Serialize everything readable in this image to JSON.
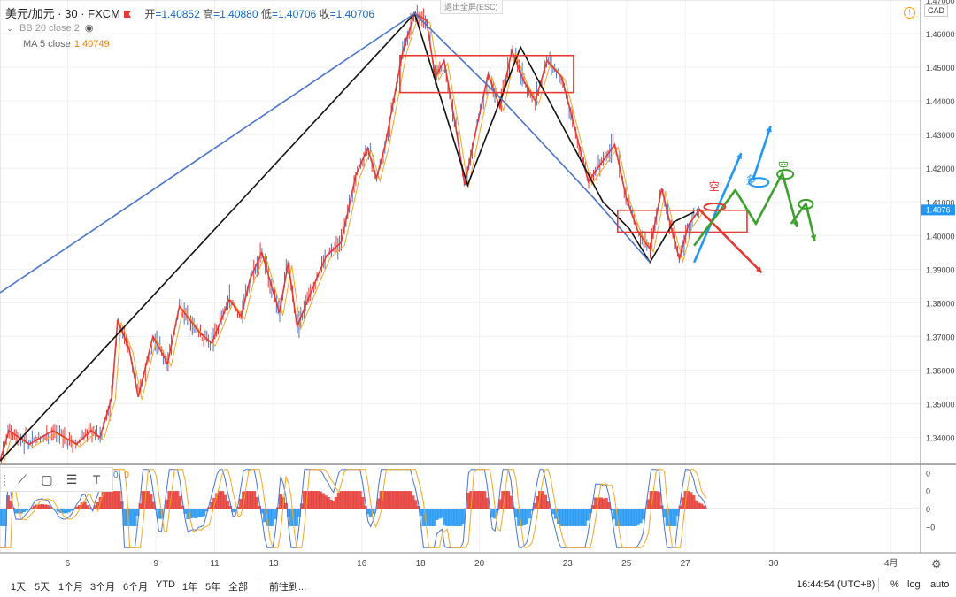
{
  "header": {
    "symbol": "美元/加元 · 30 · FXCM",
    "open_label": "开",
    "open": "=1.40852",
    "high_label": "高",
    "high": "=1.40880",
    "low_label": "低",
    "low": "=1.40706",
    "close_label": "收",
    "close": "=1.40706"
  },
  "indicators": {
    "bb": "BB 20 close 2",
    "ma_label": "MA 5 close",
    "ma_value": "1.40749",
    "osc_values": [
      "0",
      "0"
    ]
  },
  "exit_fullscreen": "退出全屏(ESC)",
  "currency_badge": "CAD",
  "price_badge": "1.4076",
  "colors": {
    "up": "#4a74c9",
    "down": "#e53935",
    "black": "#111111",
    "green": "#3aa12b",
    "blue": "#2196f3"
  },
  "annotations": [
    "空",
    "多",
    "空"
  ],
  "toolbar": {
    "icons": [
      "trend-line-icon",
      "rectangle-icon",
      "fib-icon",
      "text-icon"
    ],
    "text_tool": "T"
  },
  "bottom_bar": {
    "timeframes": [
      "1天",
      "5天",
      "1个月",
      "3个月",
      "6个月",
      "YTD",
      "1年",
      "5年",
      "全部"
    ],
    "goto": "前往到...",
    "clock": "16:44:54 (UTC+8)",
    "percent": "%",
    "log": "log",
    "auto": "auto"
  },
  "chart_data": {
    "type": "line",
    "title": "",
    "y_axis_labels": [
      "1.47000",
      "1.46000",
      "1.45000",
      "1.44000",
      "1.43000",
      "1.42000",
      "1.41000",
      "1.40000",
      "1.39000",
      "1.38000",
      "1.37000",
      "1.36000",
      "1.35000",
      "1.34000"
    ],
    "ylim": [
      1.332,
      1.47
    ],
    "x_axis_labels": [
      "6",
      "9",
      "11",
      "13",
      "16",
      "18",
      "20",
      "23",
      "25",
      "27",
      "30",
      "4月"
    ],
    "x_axis_positions": [
      2.5,
      5.5,
      7.5,
      9.5,
      12.5,
      14.5,
      16.5,
      19.5,
      21.5,
      23.5,
      26.5,
      30.5
    ],
    "xlim": [
      0.2,
      31.5
    ],
    "osc_axis_labels": [
      "0",
      "0",
      "0",
      "−0"
    ],
    "osc_ylim": [
      -1.3,
      1.3
    ],
    "series": [
      {
        "name": "",
        "color": "#e53935",
        "values": [
          [
            0.2,
            1.333
          ],
          [
            0.5,
            1.342
          ],
          [
            1.2,
            1.338
          ],
          [
            2.0,
            1.342
          ],
          [
            2.8,
            1.338
          ],
          [
            3.3,
            1.342
          ],
          [
            3.6,
            1.34
          ],
          [
            4.0,
            1.352
          ],
          [
            4.2,
            1.375
          ],
          [
            4.6,
            1.366
          ],
          [
            4.9,
            1.352
          ],
          [
            5.4,
            1.37
          ],
          [
            5.9,
            1.362
          ],
          [
            6.3,
            1.379
          ],
          [
            7.0,
            1.371
          ],
          [
            7.4,
            1.368
          ],
          [
            8.0,
            1.381
          ],
          [
            8.4,
            1.376
          ],
          [
            8.7,
            1.387
          ],
          [
            9.1,
            1.395
          ],
          [
            9.7,
            1.377
          ],
          [
            10.0,
            1.392
          ],
          [
            10.3,
            1.373
          ],
          [
            11.0,
            1.388
          ],
          [
            11.3,
            1.394
          ],
          [
            11.8,
            1.398
          ],
          [
            12.3,
            1.418
          ],
          [
            12.7,
            1.426
          ],
          [
            13.0,
            1.417
          ],
          [
            13.3,
            1.427
          ],
          [
            13.6,
            1.441
          ],
          [
            13.9,
            1.455
          ],
          [
            14.3,
            1.466
          ],
          [
            14.7,
            1.464
          ],
          [
            15.0,
            1.447
          ],
          [
            15.3,
            1.452
          ],
          [
            15.7,
            1.432
          ],
          [
            16.0,
            1.415
          ],
          [
            16.4,
            1.432
          ],
          [
            16.8,
            1.448
          ],
          [
            17.2,
            1.438
          ],
          [
            17.6,
            1.455
          ],
          [
            18.0,
            1.446
          ],
          [
            18.4,
            1.44
          ],
          [
            18.8,
            1.452
          ],
          [
            19.3,
            1.447
          ],
          [
            19.8,
            1.43
          ],
          [
            20.2,
            1.416
          ],
          [
            20.6,
            1.421
          ],
          [
            21.1,
            1.427
          ],
          [
            21.5,
            1.411
          ],
          [
            21.9,
            1.401
          ],
          [
            22.3,
            1.396
          ],
          [
            22.7,
            1.414
          ],
          [
            23.0,
            1.403
          ],
          [
            23.3,
            1.393
          ],
          [
            23.6,
            1.403
          ],
          [
            24.0,
            1.408
          ]
        ]
      },
      {
        "name": "",
        "color": "#111111",
        "values": [
          [
            0.2,
            1.333
          ],
          [
            14.3,
            1.466
          ],
          [
            16.1,
            1.415
          ],
          [
            17.9,
            1.456
          ],
          [
            20.7,
            1.41
          ],
          [
            21.6,
            1.402
          ],
          [
            22.3,
            1.392
          ],
          [
            23.1,
            1.404
          ],
          [
            23.8,
            1.407
          ]
        ]
      },
      {
        "name": "",
        "color": "#4a74c9",
        "values": [
          [
            0.2,
            1.383
          ],
          [
            14.3,
            1.466
          ],
          [
            17.2,
            1.441
          ],
          [
            20.4,
            1.411
          ],
          [
            22.3,
            1.392
          ]
        ]
      }
    ]
  }
}
